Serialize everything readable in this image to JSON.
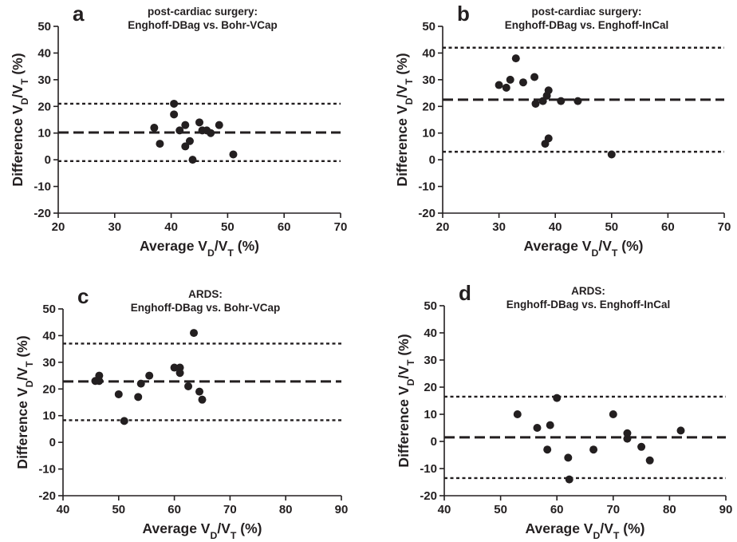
{
  "chart_data": [
    {
      "panel": "a",
      "type": "scatter",
      "title": [
        "post-cardiac surgery:",
        "Enghoff-DBag vs. Bohr-VCap"
      ],
      "xlabel": "Average V_D/V_T (%)",
      "ylabel": "Difference V_D/V_T (%)",
      "xlim": [
        20,
        70
      ],
      "ylim": [
        -20,
        50
      ],
      "xticks": [
        20,
        30,
        40,
        50,
        60,
        70
      ],
      "yticks": [
        -20,
        -10,
        0,
        10,
        20,
        30,
        40,
        50
      ],
      "mean_bias": 10.2,
      "limits_of_agreement": [
        -0.5,
        21
      ],
      "points": [
        {
          "x": 37,
          "y": 12
        },
        {
          "x": 38,
          "y": 6
        },
        {
          "x": 40.5,
          "y": 21
        },
        {
          "x": 40.5,
          "y": 17
        },
        {
          "x": 41.5,
          "y": 11
        },
        {
          "x": 42.5,
          "y": 13
        },
        {
          "x": 42.5,
          "y": 5
        },
        {
          "x": 43.3,
          "y": 7
        },
        {
          "x": 43.8,
          "y": 0
        },
        {
          "x": 45,
          "y": 14
        },
        {
          "x": 45.5,
          "y": 11
        },
        {
          "x": 46.3,
          "y": 11
        },
        {
          "x": 47,
          "y": 10
        },
        {
          "x": 48.5,
          "y": 13
        },
        {
          "x": 51,
          "y": 2
        }
      ]
    },
    {
      "panel": "b",
      "type": "scatter",
      "title": [
        "post-cardiac surgery:",
        "Enghoff-DBag vs. Enghoff-InCal"
      ],
      "xlabel": "Average V_D/V_T (%)",
      "ylabel": "Difference V_D/V_T (%)",
      "xlim": [
        20,
        70
      ],
      "ylim": [
        -20,
        50
      ],
      "xticks": [
        20,
        30,
        40,
        50,
        60,
        70
      ],
      "yticks": [
        -20,
        -10,
        0,
        10,
        20,
        30,
        40,
        50
      ],
      "mean_bias": 22.5,
      "limits_of_agreement": [
        3,
        42
      ],
      "points": [
        {
          "x": 30,
          "y": 28
        },
        {
          "x": 31.3,
          "y": 27
        },
        {
          "x": 32,
          "y": 30
        },
        {
          "x": 33,
          "y": 38
        },
        {
          "x": 34.3,
          "y": 29
        },
        {
          "x": 36.3,
          "y": 31
        },
        {
          "x": 36.5,
          "y": 21
        },
        {
          "x": 37.8,
          "y": 22
        },
        {
          "x": 38.5,
          "y": 24
        },
        {
          "x": 38.8,
          "y": 26
        },
        {
          "x": 38.2,
          "y": 6
        },
        {
          "x": 38.8,
          "y": 8
        },
        {
          "x": 41,
          "y": 22
        },
        {
          "x": 44,
          "y": 22
        },
        {
          "x": 50,
          "y": 2
        }
      ]
    },
    {
      "panel": "c",
      "type": "scatter",
      "title": [
        "ARDS:",
        "Enghoff-DBag vs. Bohr-VCap"
      ],
      "xlabel": "Average V_D/V_T (%)",
      "ylabel": "Difference V_D/V_T (%)",
      "xlim": [
        40,
        90
      ],
      "ylim": [
        -20,
        50
      ],
      "xticks": [
        40,
        50,
        60,
        70,
        80,
        90
      ],
      "yticks": [
        -20,
        -10,
        0,
        10,
        20,
        30,
        40,
        50
      ],
      "mean_bias": 22.8,
      "limits_of_agreement": [
        8.3,
        37
      ],
      "points": [
        {
          "x": 45.8,
          "y": 23
        },
        {
          "x": 46.5,
          "y": 25
        },
        {
          "x": 46.5,
          "y": 23
        },
        {
          "x": 50,
          "y": 18
        },
        {
          "x": 51,
          "y": 8
        },
        {
          "x": 53.5,
          "y": 17
        },
        {
          "x": 54,
          "y": 22
        },
        {
          "x": 55.5,
          "y": 25
        },
        {
          "x": 60,
          "y": 28
        },
        {
          "x": 61,
          "y": 28
        },
        {
          "x": 61,
          "y": 26
        },
        {
          "x": 62.5,
          "y": 21
        },
        {
          "x": 63.5,
          "y": 41
        },
        {
          "x": 64.5,
          "y": 19
        },
        {
          "x": 65,
          "y": 16
        }
      ]
    },
    {
      "panel": "d",
      "type": "scatter",
      "title": [
        "ARDS:",
        "Enghoff-DBag vs. Enghoff-InCal"
      ],
      "xlabel": "Average V_D/V_T (%)",
      "ylabel": "Difference V_D/V_T (%)",
      "xlim": [
        40,
        90
      ],
      "ylim": [
        -20,
        50
      ],
      "xticks": [
        40,
        50,
        60,
        70,
        80,
        90
      ],
      "yticks": [
        -20,
        -10,
        0,
        10,
        20,
        30,
        40,
        50
      ],
      "mean_bias": 1.5,
      "limits_of_agreement": [
        -13.5,
        16.5
      ],
      "points": [
        {
          "x": 53,
          "y": 10
        },
        {
          "x": 56.5,
          "y": 5
        },
        {
          "x": 58.3,
          "y": -3
        },
        {
          "x": 58.8,
          "y": 6
        },
        {
          "x": 60,
          "y": 16
        },
        {
          "x": 62,
          "y": -6
        },
        {
          "x": 62.2,
          "y": -14
        },
        {
          "x": 66.5,
          "y": -3
        },
        {
          "x": 70,
          "y": 10
        },
        {
          "x": 72.5,
          "y": 3
        },
        {
          "x": 72.5,
          "y": 1
        },
        {
          "x": 75,
          "y": -2
        },
        {
          "x": 76.5,
          "y": -7
        },
        {
          "x": 82,
          "y": 4
        }
      ]
    }
  ]
}
